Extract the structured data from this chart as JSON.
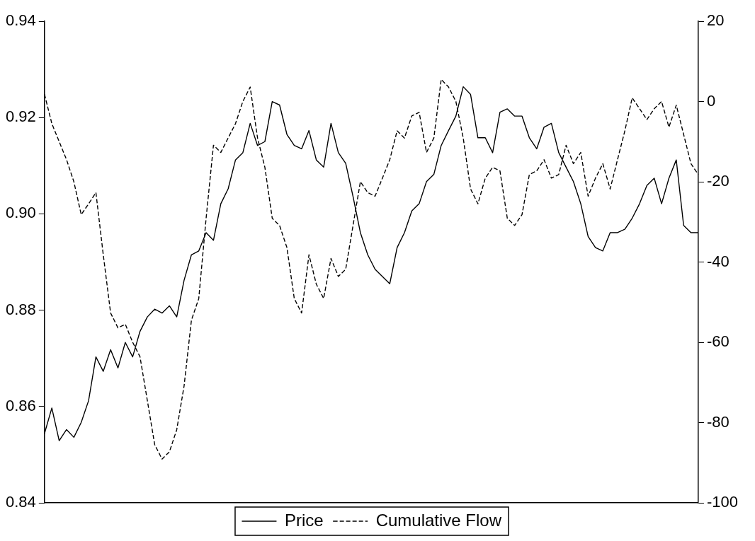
{
  "chart_data": {
    "type": "line",
    "categories": [
      null,
      null,
      null,
      null,
      null,
      null,
      null,
      null,
      null,
      null,
      null,
      null,
      null,
      null,
      null,
      null,
      null,
      null,
      null,
      null,
      null,
      null,
      null,
      null,
      null,
      null,
      null,
      null,
      null,
      null,
      null,
      null,
      null,
      null,
      null,
      null,
      null,
      null,
      null,
      null,
      null,
      null,
      null,
      null,
      null,
      null,
      null,
      null,
      null,
      null,
      null,
      null,
      null,
      null,
      null,
      null,
      null,
      null,
      null,
      null,
      null,
      null,
      null,
      null,
      null,
      null,
      null,
      null,
      null,
      null,
      null,
      null,
      null,
      null,
      null,
      null,
      null,
      null,
      null,
      null,
      null,
      null,
      null,
      null,
      null,
      null,
      null,
      null,
      null,
      null
    ],
    "series": [
      {
        "name": "Price",
        "color": "#000000",
        "line_style": "solid",
        "values": [
          0.8544,
          0.8597,
          0.8529,
          0.8552,
          0.8536,
          0.8567,
          0.8612,
          0.8703,
          0.8673,
          0.8718,
          0.868,
          0.8733,
          0.8703,
          0.8756,
          0.8786,
          0.8802,
          0.8794,
          0.8809,
          0.8786,
          0.8862,
          0.8915,
          0.8923,
          0.8961,
          0.8945,
          0.9021,
          0.9052,
          0.9112,
          0.9127,
          0.9188,
          0.9142,
          0.915,
          0.9233,
          0.9226,
          0.9165,
          0.9142,
          0.9135,
          0.9173,
          0.9112,
          0.9097,
          0.9188,
          0.9127,
          0.9105,
          0.9036,
          0.8961,
          0.8915,
          0.8885,
          0.887,
          0.8855,
          0.893,
          0.8961,
          0.9006,
          0.9021,
          0.9067,
          0.9082,
          0.9142,
          0.9173,
          0.9203,
          0.9264,
          0.9248,
          0.9158,
          0.9158,
          0.9127,
          0.9211,
          0.9218,
          0.9203,
          0.9203,
          0.9158,
          0.9135,
          0.918,
          0.9188,
          0.9127,
          0.9097,
          0.9067,
          0.9021,
          0.8953,
          0.893,
          0.8923,
          0.8961,
          0.8961,
          0.8968,
          0.8991,
          0.9021,
          0.9059,
          0.9074,
          0.9021,
          0.9074,
          0.9112,
          0.8976,
          0.8961,
          0.8961
        ]
      },
      {
        "name": "Cumulative Flow",
        "color": "#000000",
        "line_style": "dashed",
        "axis": "y2",
        "values": [
          1.8,
          -5.5,
          -10,
          -14.5,
          -20,
          -28.2,
          -25.5,
          -22.7,
          -38.2,
          -52.7,
          -56.4,
          -55.5,
          -60,
          -63.6,
          -74.5,
          -85.5,
          -89.1,
          -87.3,
          -81.8,
          -70.9,
          -54.5,
          -49.1,
          -29.1,
          -10.9,
          -12.7,
          -9.1,
          -5.5,
          0,
          3.6,
          -9.1,
          -16.4,
          -29.1,
          -30.9,
          -36.4,
          -49.1,
          -52.7,
          -38.2,
          -45.5,
          -49.1,
          -39.1,
          -43.6,
          -41.8,
          -30.9,
          -20,
          -22.7,
          -23.6,
          -19.1,
          -14.5,
          -7.3,
          -9.1,
          -3.6,
          -2.7,
          -12.7,
          -9.1,
          5.5,
          3.6,
          0,
          -9.1,
          -21.8,
          -25.5,
          -19.1,
          -16.4,
          -17.3,
          -29.1,
          -30.9,
          -28.2,
          -18.2,
          -17.3,
          -14.5,
          -19.1,
          -18.2,
          -10.9,
          -15.5,
          -12.7,
          -23.6,
          -19.1,
          -15.5,
          -21.8,
          -14.5,
          -7.3,
          0.9,
          -1.8,
          -4.5,
          -1.8,
          0,
          -6.4,
          -0.9,
          -8.2,
          -15.5,
          -18.2
        ]
      }
    ],
    "ylim": [
      0.84,
      0.94
    ],
    "yticks": [
      0.84,
      0.86,
      0.88,
      {
        "value": 0.9,
        "label": "0.90"
      },
      0.92,
      0.94
    ],
    "y2lim": [
      -100,
      20
    ],
    "y2ticks": [
      -100,
      -80,
      -60,
      -40,
      -20,
      0,
      20
    ],
    "grid": false,
    "legend": "bottom",
    "marker": "none",
    "tick_labels": "y"
  }
}
